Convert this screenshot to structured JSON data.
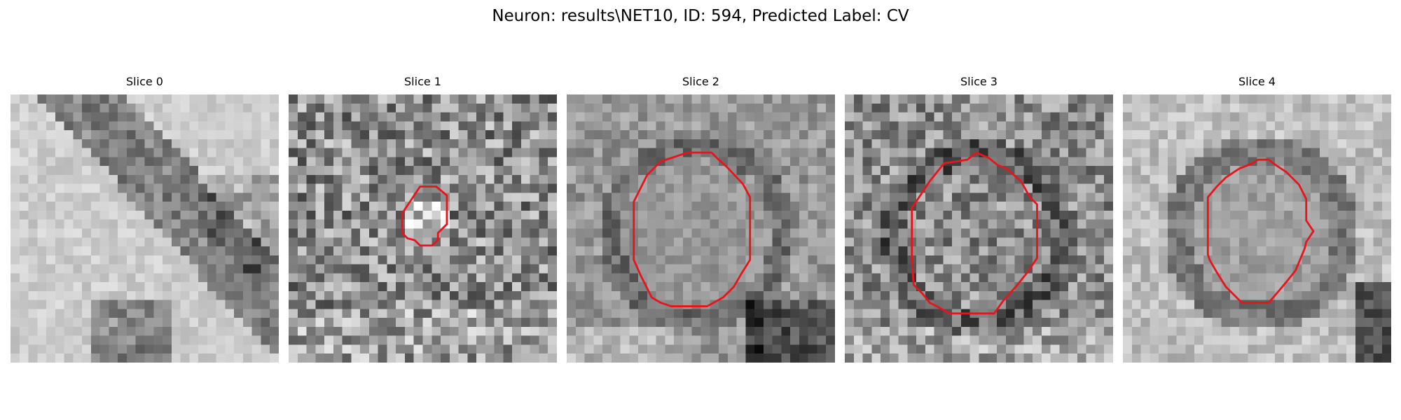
{
  "figure": {
    "title": "Neuron: results\\NET10, ID: 594, Predicted Label: CV",
    "contour_color": "#e8141c",
    "colormap": "gray"
  },
  "panels": [
    {
      "title": "Slice 0",
      "scene": "bright, hazy field with a dark diagonal band in the lower right",
      "contour": []
    },
    {
      "title": "Slice 1",
      "scene": "noisy grey texture with a small bright blob near the centre",
      "contour": [
        [
          14.7,
          10.3
        ],
        [
          16.5,
          10.3
        ],
        [
          17.7,
          11.3
        ],
        [
          17.7,
          14.5
        ],
        [
          16.7,
          15.5
        ],
        [
          16.7,
          16.3
        ],
        [
          16,
          16.9
        ],
        [
          14.7,
          16.9
        ],
        [
          14.1,
          16.3
        ],
        [
          13.3,
          16.1
        ],
        [
          12.7,
          15.5
        ],
        [
          12.7,
          13.3
        ],
        [
          13.5,
          12.1
        ]
      ]
    },
    {
      "title": "Slice 2",
      "scene": "grey texture with a roughly circular medium-grey region",
      "contour": [
        [
          10.5,
          7.5
        ],
        [
          13.5,
          6.5
        ],
        [
          16.2,
          6.5
        ],
        [
          17,
          7.3
        ],
        [
          17.9,
          8.1
        ],
        [
          19.7,
          10
        ],
        [
          20.5,
          11.5
        ],
        [
          20.5,
          15.5
        ],
        [
          20.5,
          18.5
        ],
        [
          19.5,
          20.1
        ],
        [
          18.7,
          21.5
        ],
        [
          17.5,
          22.7
        ],
        [
          15.7,
          23.7
        ],
        [
          11.7,
          23.7
        ],
        [
          10.5,
          23.3
        ],
        [
          9.5,
          22.7
        ],
        [
          8.3,
          20.3
        ],
        [
          7.5,
          18.5
        ],
        [
          7.5,
          12
        ],
        [
          9,
          9
        ]
      ]
    },
    {
      "title": "Slice 3",
      "scene": "dark-ringed cell body with a textured interior",
      "contour": [
        [
          11.1,
          7.7
        ],
        [
          13.7,
          7.3
        ],
        [
          14.7,
          6.5
        ],
        [
          16.1,
          7.1
        ],
        [
          17.1,
          7.9
        ],
        [
          18.1,
          8.3
        ],
        [
          19.7,
          9.7
        ],
        [
          20.7,
          11.5
        ],
        [
          21.5,
          12.3
        ],
        [
          21.5,
          18.3
        ],
        [
          20.5,
          19.8
        ],
        [
          19.3,
          21.3
        ],
        [
          17.7,
          23.1
        ],
        [
          16.7,
          24.5
        ],
        [
          11.7,
          24.5
        ],
        [
          10.3,
          23.7
        ],
        [
          9.5,
          23.3
        ],
        [
          8.7,
          22.3
        ],
        [
          7.7,
          21.3
        ],
        [
          7.5,
          18.5
        ],
        [
          7.5,
          12.7
        ],
        [
          8.3,
          11.5
        ],
        [
          9.5,
          9.7
        ]
      ]
    },
    {
      "title": "Slice 4",
      "scene": "bright field with a dark ring around a central cell",
      "contour": [
        [
          13,
          8.3
        ],
        [
          14.5,
          7.7
        ],
        [
          15.1,
          7.3
        ],
        [
          16.3,
          7.3
        ],
        [
          17.1,
          7.9
        ],
        [
          18.3,
          8.7
        ],
        [
          19.7,
          10.1
        ],
        [
          20.5,
          11.7
        ],
        [
          20.5,
          14.1
        ],
        [
          21.3,
          15.3
        ],
        [
          20.5,
          16.5
        ],
        [
          20.3,
          17.3
        ],
        [
          19.3,
          19.7
        ],
        [
          18.5,
          20.7
        ],
        [
          17.5,
          21.9
        ],
        [
          16.3,
          23.3
        ],
        [
          13.3,
          23.3
        ],
        [
          12.5,
          22.5
        ],
        [
          11.5,
          21.5
        ],
        [
          10.5,
          19.9
        ],
        [
          9.7,
          18.5
        ],
        [
          9.5,
          17.9
        ],
        [
          9.5,
          11.5
        ],
        [
          10.5,
          10.3
        ],
        [
          11.5,
          9.3
        ]
      ]
    }
  ]
}
